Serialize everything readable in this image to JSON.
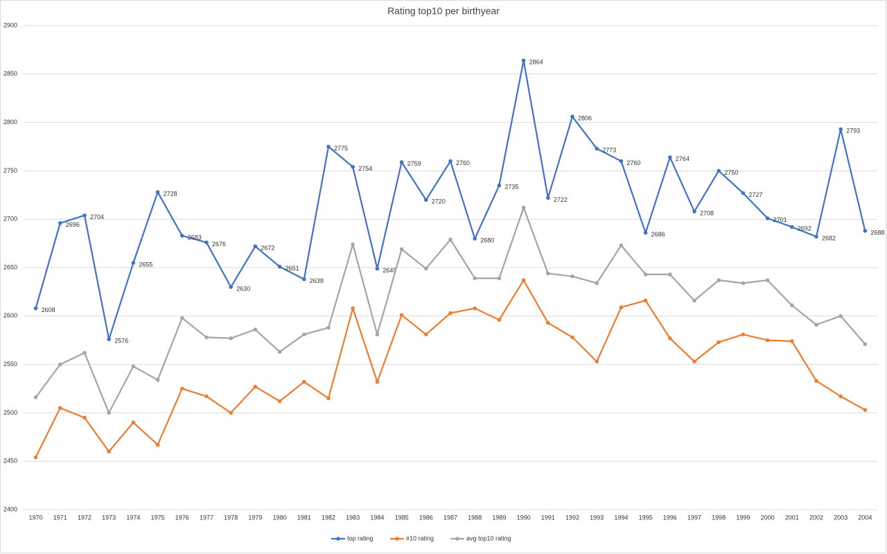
{
  "chart_data": {
    "type": "line",
    "title": "Rating top10 per birthyear",
    "categories": [
      "1970",
      "1971",
      "1972",
      "1973",
      "1974",
      "1975",
      "1976",
      "1977",
      "1978",
      "1979",
      "1980",
      "1981",
      "1982",
      "1983",
      "1984",
      "1985",
      "1986",
      "1987",
      "1988",
      "1989",
      "1990",
      "1991",
      "1992",
      "1993",
      "1994",
      "1995",
      "1996",
      "1997",
      "1998",
      "1999",
      "2000",
      "2001",
      "2002",
      "2003",
      "2004"
    ],
    "series": [
      {
        "name": "top rating",
        "color": "#4472c4",
        "data_labels": true,
        "values": [
          2608,
          2696,
          2704,
          2576,
          2655,
          2728,
          2683,
          2676,
          2630,
          2672,
          2651,
          2638,
          2775,
          2754,
          2649,
          2759,
          2720,
          2760,
          2680,
          2735,
          2864,
          2722,
          2806,
          2773,
          2760,
          2686,
          2764,
          2708,
          2750,
          2727,
          2701,
          2692,
          2682,
          2793,
          2688
        ]
      },
      {
        "name": "#10 rating",
        "color": "#ed7d31",
        "data_labels": false,
        "values": [
          2454,
          2505,
          2495,
          2460,
          2490,
          2467,
          2525,
          2517,
          2500,
          2527,
          2512,
          2532,
          2515,
          2608,
          2532,
          2601,
          2581,
          2603,
          2608,
          2596,
          2637,
          2593,
          2578,
          2553,
          2609,
          2616,
          2577,
          2553,
          2573,
          2581,
          2575,
          2574,
          2533,
          2517,
          2503
        ]
      },
      {
        "name": "avg top10 rating",
        "color": "#a5a5a5",
        "data_labels": false,
        "values": [
          2516,
          2550,
          2562,
          2500,
          2548,
          2534,
          2598,
          2578,
          2577,
          2586,
          2563,
          2581,
          2588,
          2674,
          2581,
          2669,
          2649,
          2679,
          2639,
          2639,
          2712,
          2644,
          2641,
          2634,
          2673,
          2643,
          2643,
          2616,
          2637,
          2634,
          2637,
          2611,
          2591,
          2600,
          2571
        ]
      }
    ],
    "ylim": [
      2400,
      2900
    ],
    "yticks": [
      2400,
      2450,
      2500,
      2550,
      2600,
      2650,
      2700,
      2750,
      2800,
      2850,
      2900
    ],
    "grid": true,
    "legend": "bottom"
  }
}
